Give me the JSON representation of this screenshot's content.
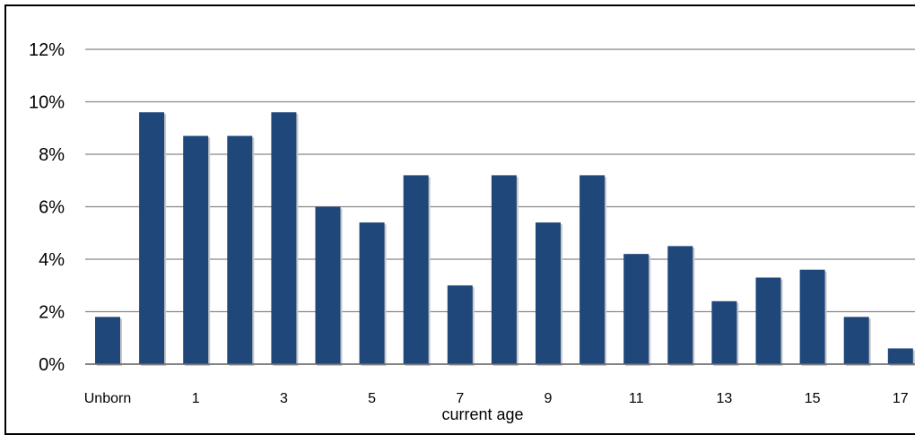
{
  "chart_data": {
    "type": "bar",
    "title": "",
    "xlabel": "current age",
    "ylabel": "",
    "ylim": [
      0,
      12
    ],
    "yticks": [
      "0%",
      "2%",
      "4%",
      "6%",
      "8%",
      "10%",
      "12%"
    ],
    "categories": [
      "Unborn",
      "0",
      "1",
      "2",
      "3",
      "4",
      "5",
      "6",
      "7",
      "8",
      "9",
      "10",
      "11",
      "12",
      "13",
      "14",
      "15",
      "16",
      "17"
    ],
    "shown_x_labels": [
      "Unborn",
      "1",
      "3",
      "5",
      "7",
      "9",
      "11",
      "13",
      "15",
      "17"
    ],
    "values": [
      1.8,
      9.6,
      8.7,
      8.7,
      9.6,
      6.0,
      5.4,
      7.2,
      3.0,
      7.2,
      5.4,
      7.2,
      4.2,
      4.5,
      2.4,
      3.3,
      3.6,
      1.8,
      0.6
    ],
    "bar_color": "#1f477a",
    "grid": true
  }
}
